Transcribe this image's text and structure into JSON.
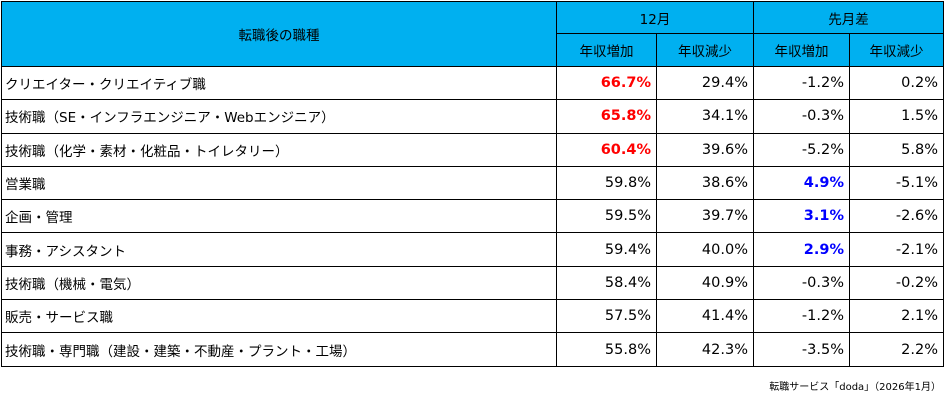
{
  "chart_data": {
    "type": "table",
    "header": {
      "job_col": "転職後の職種",
      "group_month": "12月",
      "group_diff": "先月差",
      "sub_increase": "年収増加",
      "sub_decrease": "年収減少"
    },
    "columns": [
      "12月 年収増加",
      "12月 年収減少",
      "先月差 年収増加",
      "先月差 年収減少"
    ],
    "rows": [
      {
        "job": "クリエイター・クリエイティブ職",
        "values": [
          "66.7%",
          "29.4%",
          "-1.2%",
          "0.2%"
        ],
        "highlight": [
          "red",
          "",
          "",
          ""
        ]
      },
      {
        "job": "技術職（SE・インフラエンジニア・Webエンジニア）",
        "values": [
          "65.8%",
          "34.1%",
          "-0.3%",
          "1.5%"
        ],
        "highlight": [
          "red",
          "",
          "",
          ""
        ]
      },
      {
        "job": "技術職（化学・素材・化粧品・トイレタリー）",
        "values": [
          "60.4%",
          "39.6%",
          "-5.2%",
          "5.8%"
        ],
        "highlight": [
          "red",
          "",
          "",
          ""
        ]
      },
      {
        "job": "営業職",
        "values": [
          "59.8%",
          "38.6%",
          "4.9%",
          "-5.1%"
        ],
        "highlight": [
          "",
          "",
          "blue",
          ""
        ]
      },
      {
        "job": "企画・管理",
        "values": [
          "59.5%",
          "39.7%",
          "3.1%",
          "-2.6%"
        ],
        "highlight": [
          "",
          "",
          "blue",
          ""
        ]
      },
      {
        "job": "事務・アシスタント",
        "values": [
          "59.4%",
          "40.0%",
          "2.9%",
          "-2.1%"
        ],
        "highlight": [
          "",
          "",
          "blue",
          ""
        ]
      },
      {
        "job": "技術職（機械・電気）",
        "values": [
          "58.4%",
          "40.9%",
          "-0.3%",
          "-0.2%"
        ],
        "highlight": [
          "",
          "",
          "",
          ""
        ]
      },
      {
        "job": "販売・サービス職",
        "values": [
          "57.5%",
          "41.4%",
          "-1.2%",
          "2.1%"
        ],
        "highlight": [
          "",
          "",
          "",
          ""
        ]
      },
      {
        "job": "技術職・専門職（建設・建築・不動産・プラント・工場）",
        "values": [
          "55.8%",
          "42.3%",
          "-3.5%",
          "2.2%"
        ],
        "highlight": [
          "",
          "",
          "",
          ""
        ]
      }
    ],
    "colors": {
      "header_bg": "#00b0f0",
      "highlight_red": "#ff0000",
      "highlight_blue": "#0000ff"
    }
  },
  "source": "転職サービス「doda」（2026年1月）"
}
